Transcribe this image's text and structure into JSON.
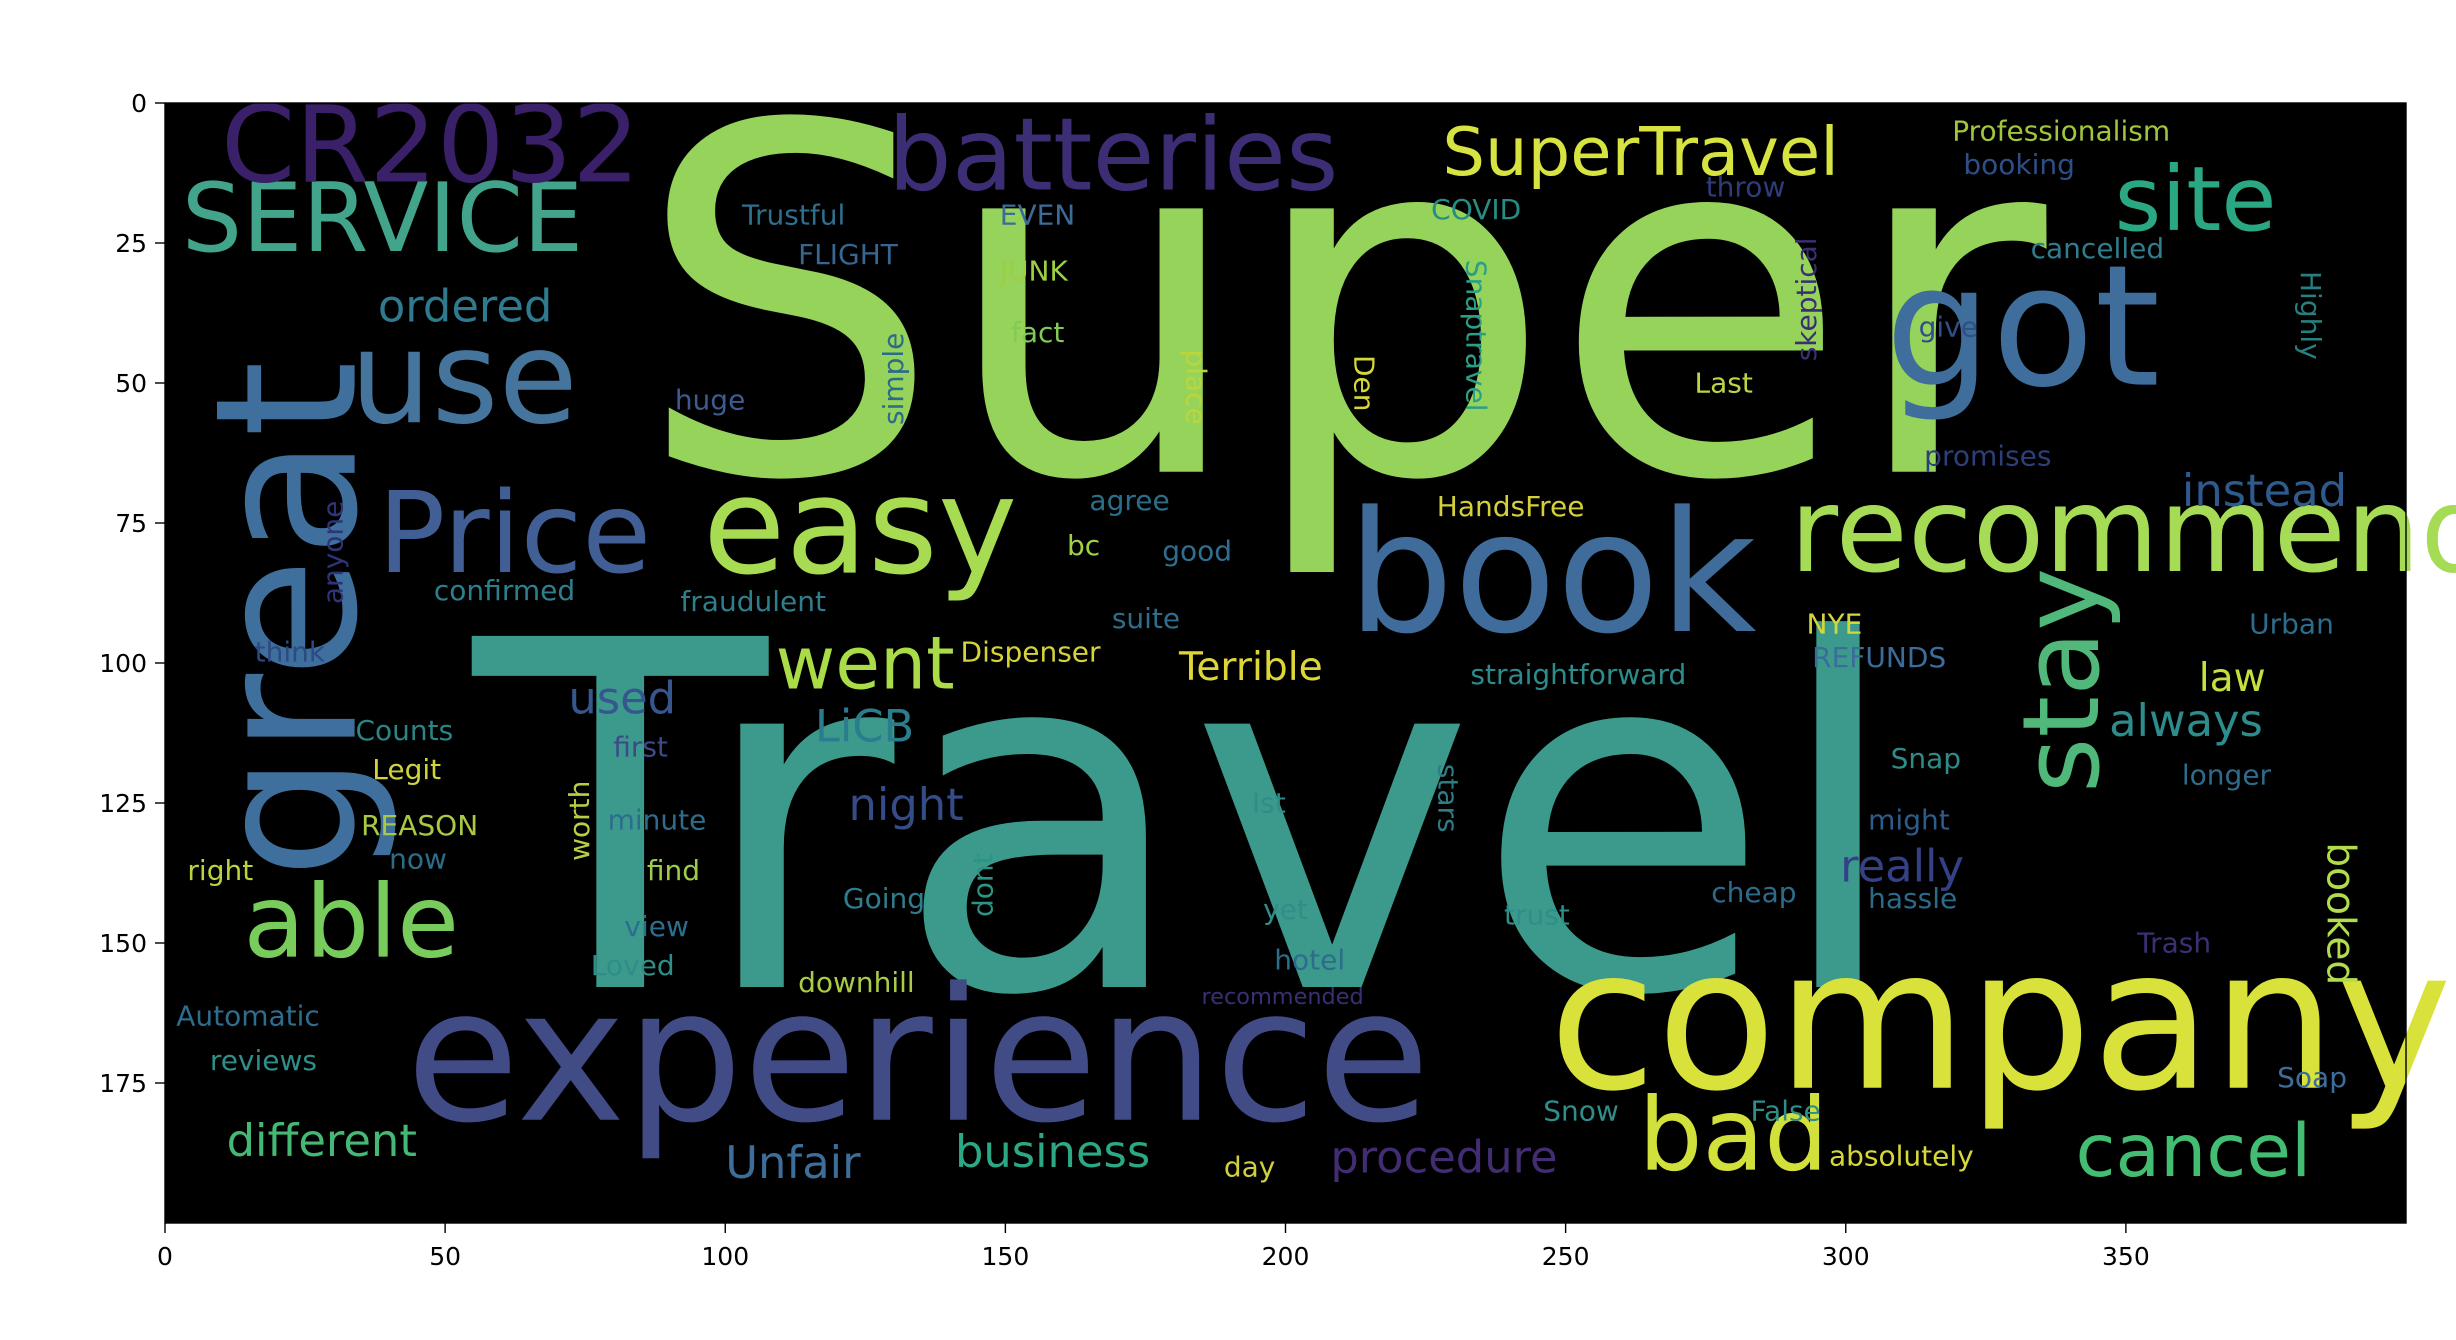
{
  "chart_data": {
    "type": "image",
    "title": "",
    "xlabel": "",
    "ylabel": "",
    "xlim": [
      0,
      400
    ],
    "ylim": [
      200,
      0
    ],
    "xticks": [
      0,
      50,
      100,
      150,
      200,
      250,
      300,
      350
    ],
    "yticks": [
      0,
      25,
      50,
      75,
      100,
      125,
      150,
      175
    ],
    "background": "#000000",
    "words": [
      {
        "text": "Super",
        "x": 84,
        "y": 2,
        "size": 86,
        "color": "#95d35a",
        "rot": 0
      },
      {
        "text": "Travel",
        "x": 55,
        "y": 94,
        "size": 86,
        "color": "#3c9a8c",
        "rot": 0
      },
      {
        "text": "experience",
        "x": 43,
        "y": 157,
        "size": 33,
        "color": "#414c87",
        "rot": 0
      },
      {
        "text": "company",
        "x": 247,
        "y": 150,
        "size": 35,
        "color": "#d8e23a",
        "rot": 0
      },
      {
        "text": "book",
        "x": 211,
        "y": 72,
        "size": 30,
        "color": "#3f6c9a",
        "rot": 0
      },
      {
        "text": "easy",
        "x": 96,
        "y": 66,
        "size": 24,
        "color": "#a6db52",
        "rot": 0
      },
      {
        "text": "recommend",
        "x": 290,
        "y": 68,
        "size": 21,
        "color": "#a5db55",
        "rot": 0
      },
      {
        "text": "got",
        "x": 307,
        "y": 28,
        "size": 30,
        "color": "#3f6e9c",
        "rot": 0
      },
      {
        "text": "use",
        "x": 33,
        "y": 40,
        "size": 23,
        "color": "#45759d",
        "rot": 0
      },
      {
        "text": "great",
        "x": 8,
        "y": 46,
        "size": 35,
        "color": "#3f6f9d",
        "rot": 270
      },
      {
        "text": "SERVICE",
        "x": 3,
        "y": 14,
        "size": 17,
        "color": "#41a48b",
        "rot": 0
      },
      {
        "text": "CR2032",
        "x": 10,
        "y": 0,
        "size": 19,
        "color": "#3a1f69",
        "rot": 0
      },
      {
        "text": "batteries",
        "x": 129,
        "y": 2,
        "size": 18,
        "color": "#3d2d75",
        "rot": 0
      },
      {
        "text": "SuperTravel",
        "x": 228,
        "y": 4,
        "size": 12,
        "color": "#d7e341",
        "rot": 0
      },
      {
        "text": "site",
        "x": 348,
        "y": 11,
        "size": 16,
        "color": "#2aa883",
        "rot": 0
      },
      {
        "text": "Price",
        "x": 38,
        "y": 69,
        "size": 20,
        "color": "#425f95",
        "rot": 0
      },
      {
        "text": "able",
        "x": 14,
        "y": 139,
        "size": 18,
        "color": "#77cc5c",
        "rot": 0
      },
      {
        "text": "went",
        "x": 109,
        "y": 95,
        "size": 13,
        "color": "#aadc47",
        "rot": 0
      },
      {
        "text": "stay",
        "x": 331,
        "y": 83,
        "size": 19,
        "color": "#50b87a",
        "rot": 270
      },
      {
        "text": "bad",
        "x": 263,
        "y": 177,
        "size": 18,
        "color": "#d2e03c",
        "rot": 0
      },
      {
        "text": "cancel",
        "x": 341,
        "y": 182,
        "size": 13,
        "color": "#42bd72",
        "rot": 0
      },
      {
        "text": "Unfair",
        "x": 100,
        "y": 186,
        "size": 8,
        "color": "#3d6d99",
        "rot": 0
      },
      {
        "text": "business",
        "x": 141,
        "y": 184,
        "size": 8,
        "color": "#2da884",
        "rot": 0
      },
      {
        "text": "procedure",
        "x": 208,
        "y": 185,
        "size": 8,
        "color": "#422c72",
        "rot": 0
      },
      {
        "text": "different",
        "x": 11,
        "y": 182,
        "size": 8,
        "color": "#44b874",
        "rot": 0
      },
      {
        "text": "used",
        "x": 72,
        "y": 103,
        "size": 8,
        "color": "#37568e",
        "rot": 0
      },
      {
        "text": "LiCB",
        "x": 116,
        "y": 108,
        "size": 8,
        "color": "#2a7d8d",
        "rot": 0
      },
      {
        "text": "night",
        "x": 122,
        "y": 122,
        "size": 8,
        "color": "#354c88",
        "rot": 0
      },
      {
        "text": "ordered",
        "x": 38,
        "y": 33,
        "size": 8,
        "color": "#2f7a8f",
        "rot": 0
      },
      {
        "text": "Terrible",
        "x": 181,
        "y": 98,
        "size": 7,
        "color": "#ded636",
        "rot": 0
      },
      {
        "text": "law",
        "x": 363,
        "y": 100,
        "size": 7,
        "color": "#c7df3d",
        "rot": 0
      },
      {
        "text": "always",
        "x": 347,
        "y": 107,
        "size": 8,
        "color": "#2d8c8c",
        "rot": 0
      },
      {
        "text": "really",
        "x": 299,
        "y": 133,
        "size": 8,
        "color": "#354186",
        "rot": 0
      },
      {
        "text": "booked",
        "x": 384,
        "y": 132,
        "size": 7,
        "color": "#b1dc4b",
        "rot": 90
      },
      {
        "text": "instead",
        "x": 360,
        "y": 66,
        "size": 8,
        "color": "#2e5b8e",
        "rot": 0
      },
      {
        "text": "Professionalism",
        "x": 319,
        "y": 3,
        "size": 5,
        "color": "#a1c53c",
        "rot": 0
      },
      {
        "text": "booking",
        "x": 321,
        "y": 9,
        "size": 5,
        "color": "#2d4e87",
        "rot": 0
      },
      {
        "text": "throw",
        "x": 275,
        "y": 13,
        "size": 5,
        "color": "#2e3c7c",
        "rot": 0
      },
      {
        "text": "COVID",
        "x": 226,
        "y": 17,
        "size": 5,
        "color": "#268c85",
        "rot": 0
      },
      {
        "text": "Trustful",
        "x": 103,
        "y": 18,
        "size": 5,
        "color": "#2e6f8e",
        "rot": 0
      },
      {
        "text": "EVEN",
        "x": 149,
        "y": 18,
        "size": 5,
        "color": "#3d6b98",
        "rot": 0
      },
      {
        "text": "FLIGHT",
        "x": 113,
        "y": 25,
        "size": 5,
        "color": "#376690",
        "rot": 0
      },
      {
        "text": "JUNK",
        "x": 149,
        "y": 28,
        "size": 5,
        "color": "#9dcf44",
        "rot": 0
      },
      {
        "text": "cancelled",
        "x": 333,
        "y": 24,
        "size": 5,
        "color": "#2f7d8d",
        "rot": 0
      },
      {
        "text": "fact",
        "x": 151,
        "y": 39,
        "size": 5,
        "color": "#83c956",
        "rot": 0
      },
      {
        "text": "give",
        "x": 313,
        "y": 38,
        "size": 5,
        "color": "#2f4f86",
        "rot": 0
      },
      {
        "text": "Highly",
        "x": 380,
        "y": 30,
        "size": 5,
        "color": "#27807f",
        "rot": 90
      },
      {
        "text": "skeptical",
        "x": 291,
        "y": 24,
        "size": 5,
        "color": "#3b2e72",
        "rot": 270
      },
      {
        "text": "Snaptravel",
        "x": 231,
        "y": 28,
        "size": 5,
        "color": "#2a9f86",
        "rot": 90
      },
      {
        "text": "Den",
        "x": 211,
        "y": 45,
        "size": 5,
        "color": "#d5d83c",
        "rot": 90
      },
      {
        "text": "place",
        "x": 181,
        "y": 44,
        "size": 5,
        "color": "#bcd53a",
        "rot": 90
      },
      {
        "text": "simple",
        "x": 128,
        "y": 41,
        "size": 5,
        "color": "#2b6c8a",
        "rot": 270
      },
      {
        "text": "huge",
        "x": 91,
        "y": 51,
        "size": 5,
        "color": "#3b5b91",
        "rot": 0
      },
      {
        "text": "Last",
        "x": 273,
        "y": 48,
        "size": 5,
        "color": "#bcd542",
        "rot": 0
      },
      {
        "text": "promises",
        "x": 314,
        "y": 61,
        "size": 5,
        "color": "#2d3f7b",
        "rot": 0
      },
      {
        "text": "HandsFree",
        "x": 227,
        "y": 70,
        "size": 5,
        "color": "#d4cf3a",
        "rot": 0
      },
      {
        "text": "agree",
        "x": 165,
        "y": 69,
        "size": 5,
        "color": "#2b6e8a",
        "rot": 0
      },
      {
        "text": "bc",
        "x": 161,
        "y": 77,
        "size": 5,
        "color": "#a0d045",
        "rot": 0
      },
      {
        "text": "good",
        "x": 178,
        "y": 78,
        "size": 5,
        "color": "#2e6f8f",
        "rot": 0
      },
      {
        "text": "anyone",
        "x": 28,
        "y": 71,
        "size": 5,
        "color": "#2e3476",
        "rot": 270
      },
      {
        "text": "confirmed",
        "x": 48,
        "y": 85,
        "size": 5,
        "color": "#2e7f8e",
        "rot": 0
      },
      {
        "text": "fraudulent",
        "x": 92,
        "y": 87,
        "size": 5,
        "color": "#2f7e8b",
        "rot": 0
      },
      {
        "text": "suite",
        "x": 169,
        "y": 90,
        "size": 5,
        "color": "#2e6d8c",
        "rot": 0
      },
      {
        "text": "NYE",
        "x": 293,
        "y": 91,
        "size": 5,
        "color": "#cfd63e",
        "rot": 0
      },
      {
        "text": "Urban",
        "x": 372,
        "y": 91,
        "size": 5,
        "color": "#2b6d8c",
        "rot": 0
      },
      {
        "text": "think",
        "x": 16,
        "y": 96,
        "size": 5,
        "color": "#2c4a84",
        "rot": 0
      },
      {
        "text": "Dispenser",
        "x": 142,
        "y": 96,
        "size": 5,
        "color": "#d4d43a",
        "rot": 0
      },
      {
        "text": "straightforward",
        "x": 233,
        "y": 100,
        "size": 5,
        "color": "#2c8b8b",
        "rot": 0
      },
      {
        "text": "REFUNDS",
        "x": 294,
        "y": 97,
        "size": 5,
        "color": "#3b6c9a",
        "rot": 0
      },
      {
        "text": "Counts",
        "x": 34,
        "y": 110,
        "size": 5,
        "color": "#2b8485",
        "rot": 0
      },
      {
        "text": "first",
        "x": 80,
        "y": 113,
        "size": 5,
        "color": "#3d4a87",
        "rot": 0
      },
      {
        "text": "stars",
        "x": 226,
        "y": 118,
        "size": 5,
        "color": "#2d7d87",
        "rot": 90
      },
      {
        "text": "Snap",
        "x": 308,
        "y": 115,
        "size": 5,
        "color": "#2f8b88",
        "rot": 0
      },
      {
        "text": "Legit",
        "x": 37,
        "y": 117,
        "size": 5,
        "color": "#d0d33b",
        "rot": 0
      },
      {
        "text": "longer",
        "x": 360,
        "y": 118,
        "size": 5,
        "color": "#2d6b8c",
        "rot": 0
      },
      {
        "text": "worth",
        "x": 72,
        "y": 121,
        "size": 5,
        "color": "#b7cf45",
        "rot": 270
      },
      {
        "text": "Ist",
        "x": 194,
        "y": 123,
        "size": 5,
        "color": "#2e8e8a",
        "rot": 0
      },
      {
        "text": "minute",
        "x": 79,
        "y": 126,
        "size": 5,
        "color": "#2e6c8c",
        "rot": 0
      },
      {
        "text": "might",
        "x": 304,
        "y": 126,
        "size": 5,
        "color": "#2c5d8a",
        "rot": 0
      },
      {
        "text": "REASON",
        "x": 35,
        "y": 127,
        "size": 5,
        "color": "#a9c944",
        "rot": 0
      },
      {
        "text": "now",
        "x": 40,
        "y": 133,
        "size": 5,
        "color": "#2e6d8a",
        "rot": 0
      },
      {
        "text": "right",
        "x": 4,
        "y": 135,
        "size": 5,
        "color": "#b9d33e",
        "rot": 0
      },
      {
        "text": "find",
        "x": 86,
        "y": 135,
        "size": 5,
        "color": "#9ccd4a",
        "rot": 0
      },
      {
        "text": "dont",
        "x": 144,
        "y": 134,
        "size": 5,
        "color": "#2b9485",
        "rot": 270
      },
      {
        "text": "Going",
        "x": 121,
        "y": 140,
        "size": 5,
        "color": "#2e7d8c",
        "rot": 0
      },
      {
        "text": "cheap",
        "x": 276,
        "y": 139,
        "size": 5,
        "color": "#2d6b8c",
        "rot": 0
      },
      {
        "text": "hassle",
        "x": 304,
        "y": 140,
        "size": 5,
        "color": "#2c6a8a",
        "rot": 0
      },
      {
        "text": "view",
        "x": 82,
        "y": 145,
        "size": 5,
        "color": "#2c6e8d",
        "rot": 0
      },
      {
        "text": "yet",
        "x": 196,
        "y": 142,
        "size": 5,
        "color": "#2e8e8a",
        "rot": 0
      },
      {
        "text": "trust",
        "x": 239,
        "y": 143,
        "size": 5,
        "color": "#2e8e8a",
        "rot": 0
      },
      {
        "text": "hotel",
        "x": 198,
        "y": 151,
        "size": 5,
        "color": "#2c6d8c",
        "rot": 0
      },
      {
        "text": "Trash",
        "x": 352,
        "y": 148,
        "size": 5,
        "color": "#3d2f74",
        "rot": 0
      },
      {
        "text": "Loved",
        "x": 76,
        "y": 152,
        "size": 5,
        "color": "#2e8e89",
        "rot": 0
      },
      {
        "text": "downhill",
        "x": 113,
        "y": 155,
        "size": 5,
        "color": "#a9cc48",
        "rot": 0
      },
      {
        "text": "recommended",
        "x": 185,
        "y": 158,
        "size": 4,
        "color": "#3b2f74",
        "rot": 0
      },
      {
        "text": "Automatic",
        "x": 2,
        "y": 161,
        "size": 5,
        "color": "#2e6d8c",
        "rot": 0
      },
      {
        "text": "reviews",
        "x": 8,
        "y": 169,
        "size": 5,
        "color": "#2e8e8a",
        "rot": 0
      },
      {
        "text": "Soap",
        "x": 377,
        "y": 172,
        "size": 5,
        "color": "#3d6e99",
        "rot": 0
      },
      {
        "text": "Snow",
        "x": 246,
        "y": 178,
        "size": 5,
        "color": "#2e8e8a",
        "rot": 0
      },
      {
        "text": "False",
        "x": 283,
        "y": 178,
        "size": 5,
        "color": "#2e8e8a",
        "rot": 0
      },
      {
        "text": "absolutely",
        "x": 297,
        "y": 186,
        "size": 5,
        "color": "#d6d83a",
        "rot": 0
      },
      {
        "text": "day",
        "x": 189,
        "y": 188,
        "size": 5,
        "color": "#cfcf3f",
        "rot": 0
      }
    ]
  }
}
